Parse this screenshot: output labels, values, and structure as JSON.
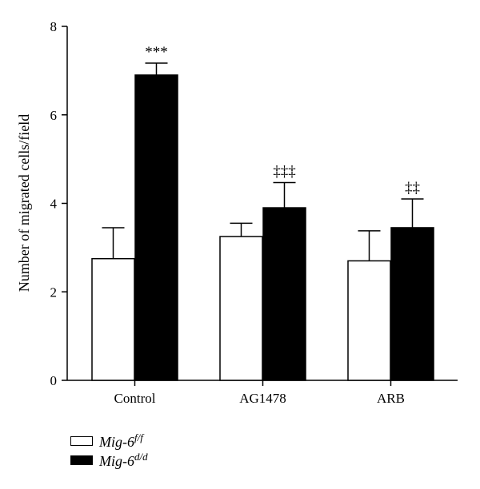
{
  "chart_data": {
    "type": "bar",
    "categories": [
      "Control",
      "AG1478",
      "ARB"
    ],
    "series": [
      {
        "name": "Mig-6",
        "superscript": "f/f",
        "color": "#ffffff",
        "values": [
          2.75,
          3.25,
          2.7
        ],
        "errors": [
          0.7,
          0.3,
          0.68
        ]
      },
      {
        "name": "Mig-6",
        "superscript": "d/d",
        "color": "#000000",
        "values": [
          6.9,
          3.9,
          3.45
        ],
        "errors": [
          0.27,
          0.57,
          0.65
        ]
      }
    ],
    "annotations": [
      "***",
      "‡‡‡",
      "‡‡"
    ],
    "ylabel": "Number of migrated cells/field",
    "xlabel": "",
    "ylim": [
      0,
      8
    ],
    "yticks": [
      "0",
      "2",
      "4",
      "6",
      "8"
    ],
    "grid": false,
    "legend_position": "bottom-left"
  }
}
